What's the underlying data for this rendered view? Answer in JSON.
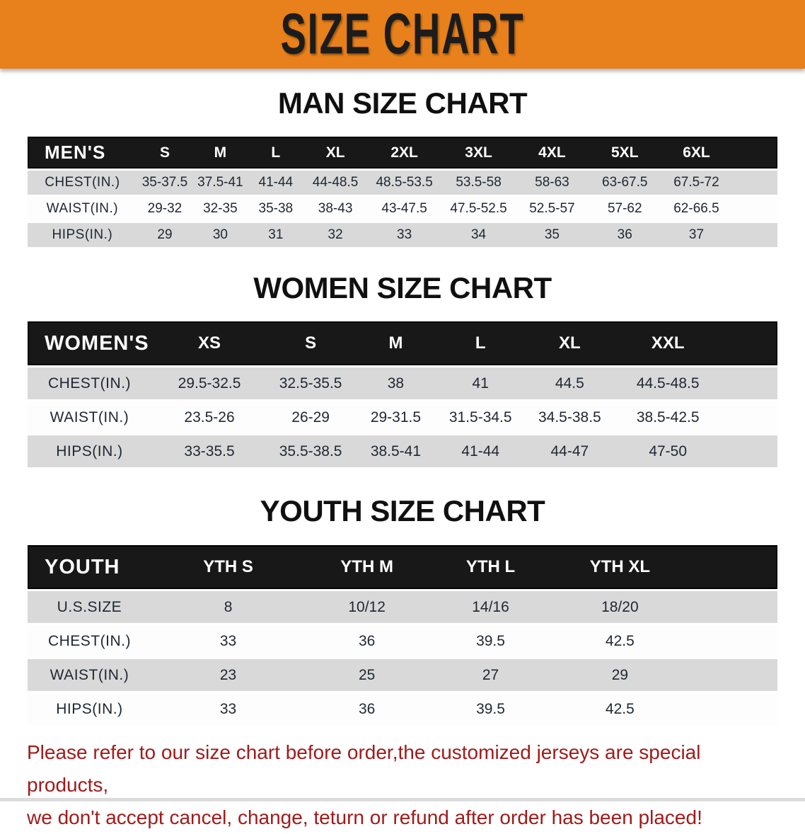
{
  "banner": {
    "title": "SIZE CHART"
  },
  "palette": {
    "banner_orange": "#E8801B",
    "header_bar": "#181818",
    "row_gray": "#D9D9D9",
    "row_white": "#FDFDFD",
    "cell_text": "#1E2733",
    "note_red": "#A01B1B"
  },
  "sections": [
    {
      "id": "men",
      "title": "MAN SIZE CHART",
      "header_label": "MEN'S",
      "columns": [
        "S",
        "M",
        "L",
        "XL",
        "2XL",
        "3XL",
        "4XL",
        "5XL",
        "6XL"
      ],
      "rows": [
        {
          "label": "CHEST(IN.)",
          "values": [
            "35-37.5",
            "37.5-41",
            "41-44",
            "44-48.5",
            "48.5-53.5",
            "53.5-58",
            "58-63",
            "63-67.5",
            "67.5-72"
          ]
        },
        {
          "label": "WAIST(IN.)",
          "values": [
            "29-32",
            "32-35",
            "35-38",
            "38-43",
            "43-47.5",
            "47.5-52.5",
            "52.5-57",
            "57-62",
            "62-66.5"
          ]
        },
        {
          "label": "HIPS(IN.)",
          "values": [
            "29",
            "30",
            "31",
            "32",
            "33",
            "34",
            "35",
            "36",
            "37"
          ]
        }
      ]
    },
    {
      "id": "women",
      "title": "WOMEN SIZE CHART",
      "header_label": "WOMEN'S",
      "columns": [
        "XS",
        "S",
        "M",
        "L",
        "XL",
        "XXL"
      ],
      "rows": [
        {
          "label": "CHEST(IN.)",
          "values": [
            "29.5-32.5",
            "32.5-35.5",
            "38",
            "41",
            "44.5",
            "44.5-48.5"
          ]
        },
        {
          "label": "WAIST(IN.)",
          "values": [
            "23.5-26",
            "26-29",
            "29-31.5",
            "31.5-34.5",
            "34.5-38.5",
            "38.5-42.5"
          ]
        },
        {
          "label": "HIPS(IN.)",
          "values": [
            "33-35.5",
            "35.5-38.5",
            "38.5-41",
            "41-44",
            "44-47",
            "47-50"
          ]
        }
      ]
    },
    {
      "id": "youth",
      "title": "YOUTH SIZE CHART",
      "header_label": "YOUTH",
      "columns": [
        "YTH S",
        "YTH M",
        "YTH L",
        "YTH XL"
      ],
      "rows": [
        {
          "label": "U.S.SIZE",
          "values": [
            "8",
            "10/12",
            "14/16",
            "18/20"
          ]
        },
        {
          "label": "CHEST(IN.)",
          "values": [
            "33",
            "36",
            "39.5",
            "42.5"
          ]
        },
        {
          "label": "WAIST(IN.)",
          "values": [
            "23",
            "25",
            "27",
            "29"
          ]
        },
        {
          "label": "HIPS(IN.)",
          "values": [
            "33",
            "36",
            "39.5",
            "42.5"
          ]
        }
      ]
    }
  ],
  "footer_note": {
    "line1": "Please refer to our size chart before order,the customized jerseys are special products,",
    "line2": "we don't accept cancel, change, teturn or refund after order has been placed!"
  }
}
